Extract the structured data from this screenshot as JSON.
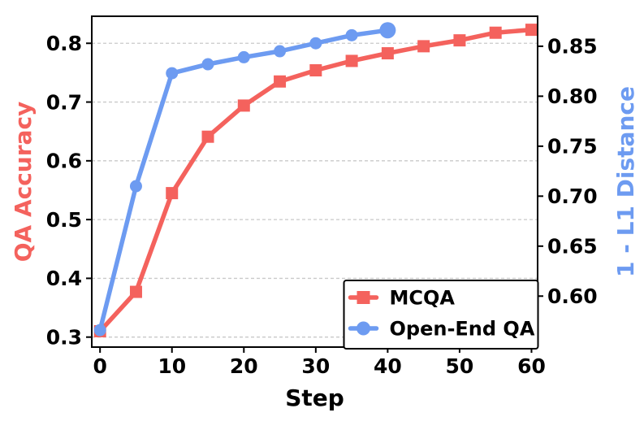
{
  "chart_data": {
    "type": "line",
    "title": "",
    "xlabel": "Step",
    "x_axis": {
      "tick_values": [
        0,
        10,
        20,
        30,
        40,
        50,
        60
      ],
      "tick_labels": [
        "0",
        "10",
        "20",
        "30",
        "40",
        "50",
        "60"
      ],
      "lim": [
        -1.15,
        60.85
      ]
    },
    "left_axis": {
      "label": "QA Accuracy",
      "color": "#F4625D",
      "tick_values": [
        0.3,
        0.4,
        0.5,
        0.6,
        0.7,
        0.8
      ],
      "tick_labels": [
        "0.3",
        "0.4",
        "0.5",
        "0.6",
        "0.7",
        "0.8"
      ],
      "lim": [
        0.283,
        0.846
      ]
    },
    "right_axis": {
      "label": "1 - L1 Distance",
      "color": "#6D9BF1",
      "tick_values": [
        0.6,
        0.65,
        0.7,
        0.75,
        0.8,
        0.85
      ],
      "tick_labels": [
        "0.60",
        "0.65",
        "0.70",
        "0.75",
        "0.80",
        "0.85"
      ],
      "lim": [
        0.549,
        0.88
      ]
    },
    "grid": {
      "horizontal": true,
      "style": "dashed",
      "color": "#c9c9c9",
      "at": "left_axis_ticks"
    },
    "series": [
      {
        "name": "MCQA",
        "axis": "left",
        "color": "#F4625D",
        "marker": "square",
        "end_emphasis": false,
        "x": [
          0,
          5,
          10,
          15,
          20,
          25,
          30,
          35,
          40,
          45,
          50,
          55,
          60
        ],
        "y": [
          0.31,
          0.377,
          0.545,
          0.641,
          0.694,
          0.735,
          0.754,
          0.77,
          0.783,
          0.795,
          0.805,
          0.818,
          0.823
        ]
      },
      {
        "name": "Open-End QA",
        "axis": "right",
        "color": "#6D9BF1",
        "marker": "circle",
        "end_emphasis": true,
        "x": [
          0,
          5,
          10,
          15,
          20,
          25,
          30,
          35,
          40
        ],
        "y": [
          0.566,
          0.71,
          0.823,
          0.832,
          0.839,
          0.845,
          0.853,
          0.861,
          0.866
        ]
      }
    ],
    "legend": {
      "position": "lower right",
      "entries": [
        "MCQA",
        "Open-End QA"
      ]
    }
  },
  "colors": {
    "background": "#ffffff",
    "spine": "#000000",
    "tick_label": "#000000",
    "grid": "#c9c9c9",
    "mcqa_red": "#F4625D",
    "openend_blue": "#6D9BF1"
  }
}
